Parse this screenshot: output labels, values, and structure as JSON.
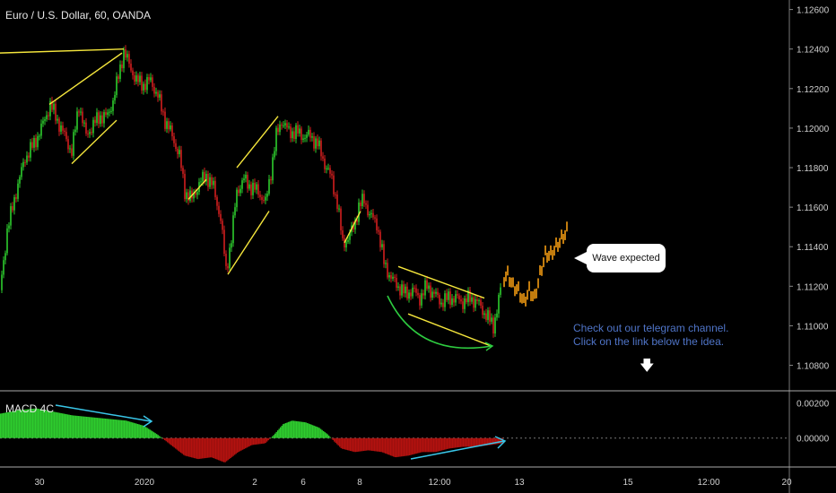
{
  "header": {
    "symbol_title": "Euro / U.S. Dollar, 60, OANDA"
  },
  "indicator": {
    "title": "MACD 4C"
  },
  "annotations": {
    "callout_text": "Wave expected",
    "promo_line1": "Check out our telegram channel.",
    "promo_line2": "Click on the link below the idea.",
    "arrow_icon": "down-arrow-icon"
  },
  "colors": {
    "background": "#000000",
    "bull_candle": "#2ecc2e",
    "bear_candle": "#d21f1f",
    "projection": "#f39c12",
    "pattern_lines": "#f5e63c",
    "divergence_line": "#39c6e8",
    "curve": "#2ecc40",
    "macd_positive": "#2ecc2e",
    "macd_negative": "#b3120f",
    "promo_text": "#4f74c7"
  },
  "chart_data": {
    "type": "candlestick",
    "title": "Euro / U.S. Dollar, 60, OANDA",
    "price_axis": {
      "ticks": [
        "1.12600",
        "1.12400",
        "1.12200",
        "1.12000",
        "1.11800",
        "1.11600",
        "1.11400",
        "1.11200",
        "1.11000",
        "1.10800"
      ],
      "range": [
        1.1068,
        1.1263
      ]
    },
    "time_axis": {
      "ticks": [
        "30",
        "2020",
        "2",
        "6",
        "8",
        "12:00",
        "13",
        "15",
        "12:00",
        "20"
      ]
    },
    "price_path": [
      [
        0,
        1.1118
      ],
      [
        8,
        1.1148
      ],
      [
        18,
        1.1168
      ],
      [
        28,
        1.1185
      ],
      [
        38,
        1.1192
      ],
      [
        48,
        1.1202
      ],
      [
        56,
        1.1212
      ],
      [
        64,
        1.1204
      ],
      [
        72,
        1.1196
      ],
      [
        80,
        1.1188
      ],
      [
        88,
        1.1212
      ],
      [
        96,
        1.1196
      ],
      [
        104,
        1.1202
      ],
      [
        112,
        1.1206
      ],
      [
        120,
        1.1206
      ],
      [
        126,
        1.1214
      ],
      [
        132,
        1.1226
      ],
      [
        138,
        1.1239
      ],
      [
        144,
        1.1232
      ],
      [
        152,
        1.1224
      ],
      [
        160,
        1.1222
      ],
      [
        168,
        1.1224
      ],
      [
        176,
        1.1216
      ],
      [
        184,
        1.1204
      ],
      [
        192,
        1.1196
      ],
      [
        200,
        1.1186
      ],
      [
        206,
        1.1168
      ],
      [
        214,
        1.1164
      ],
      [
        222,
        1.1172
      ],
      [
        230,
        1.1176
      ],
      [
        238,
        1.117
      ],
      [
        246,
        1.1154
      ],
      [
        252,
        1.1128
      ],
      [
        258,
        1.1144
      ],
      [
        264,
        1.1168
      ],
      [
        272,
        1.1174
      ],
      [
        280,
        1.117
      ],
      [
        288,
        1.1168
      ],
      [
        296,
        1.1162
      ],
      [
        302,
        1.1178
      ],
      [
        308,
        1.1196
      ],
      [
        314,
        1.1204
      ],
      [
        322,
        1.1198
      ],
      [
        330,
        1.1198
      ],
      [
        338,
        1.1196
      ],
      [
        346,
        1.1196
      ],
      [
        354,
        1.1192
      ],
      [
        362,
        1.1182
      ],
      [
        370,
        1.1174
      ],
      [
        376,
        1.1162
      ],
      [
        382,
        1.1142
      ],
      [
        388,
        1.1144
      ],
      [
        394,
        1.115
      ],
      [
        400,
        1.116
      ],
      [
        406,
        1.1164
      ],
      [
        412,
        1.1156
      ],
      [
        420,
        1.1152
      ],
      [
        428,
        1.1132
      ],
      [
        436,
        1.1124
      ],
      [
        444,
        1.112
      ],
      [
        452,
        1.1116
      ],
      [
        460,
        1.1118
      ],
      [
        468,
        1.1114
      ],
      [
        476,
        1.112
      ],
      [
        484,
        1.1116
      ],
      [
        492,
        1.1112
      ],
      [
        500,
        1.1114
      ],
      [
        508,
        1.1114
      ],
      [
        516,
        1.1112
      ],
      [
        524,
        1.1114
      ],
      [
        532,
        1.1112
      ],
      [
        538,
        1.1108
      ],
      [
        544,
        1.1104
      ],
      [
        550,
        1.11
      ],
      [
        554,
        1.1108
      ],
      [
        558,
        1.1118
      ]
    ],
    "projection_path": [
      [
        562,
        1.1124
      ],
      [
        566,
        1.1126
      ],
      [
        572,
        1.112
      ],
      [
        578,
        1.1118
      ],
      [
        584,
        1.1112
      ],
      [
        590,
        1.1118
      ],
      [
        596,
        1.1114
      ],
      [
        602,
        1.1126
      ],
      [
        608,
        1.1136
      ],
      [
        614,
        1.1136
      ],
      [
        620,
        1.114
      ],
      [
        626,
        1.1144
      ],
      [
        632,
        1.1148
      ]
    ],
    "macd": {
      "range": [
        -0.0015,
        0.0026
      ],
      "ticks": [
        "0.00200",
        "0.00000"
      ],
      "histogram": [
        [
          0,
          0.0014
        ],
        [
          20,
          0.0016
        ],
        [
          40,
          0.0017
        ],
        [
          60,
          0.0015
        ],
        [
          80,
          0.0013
        ],
        [
          100,
          0.0012
        ],
        [
          120,
          0.0011
        ],
        [
          140,
          0.001
        ],
        [
          160,
          0.0007
        ],
        [
          175,
          0.0002
        ],
        [
          190,
          -0.0004
        ],
        [
          205,
          -0.001
        ],
        [
          220,
          -0.0012
        ],
        [
          235,
          -0.0011
        ],
        [
          250,
          -0.0014
        ],
        [
          265,
          -0.0008
        ],
        [
          280,
          -0.0004
        ],
        [
          295,
          -0.0003
        ],
        [
          305,
          0.0002
        ],
        [
          315,
          0.0008
        ],
        [
          325,
          0.001
        ],
        [
          340,
          0.0009
        ],
        [
          355,
          0.0006
        ],
        [
          365,
          0.0002
        ],
        [
          372,
          -0.0002
        ],
        [
          380,
          -0.0006
        ],
        [
          395,
          -0.0008
        ],
        [
          410,
          -0.0007
        ],
        [
          425,
          -0.0008
        ],
        [
          440,
          -0.0011
        ],
        [
          455,
          -0.001
        ],
        [
          470,
          -0.0008
        ],
        [
          485,
          -0.0008
        ],
        [
          500,
          -0.0006
        ],
        [
          515,
          -0.0005
        ],
        [
          530,
          -0.0005
        ],
        [
          545,
          -0.0004
        ],
        [
          560,
          -0.0003
        ]
      ]
    }
  }
}
